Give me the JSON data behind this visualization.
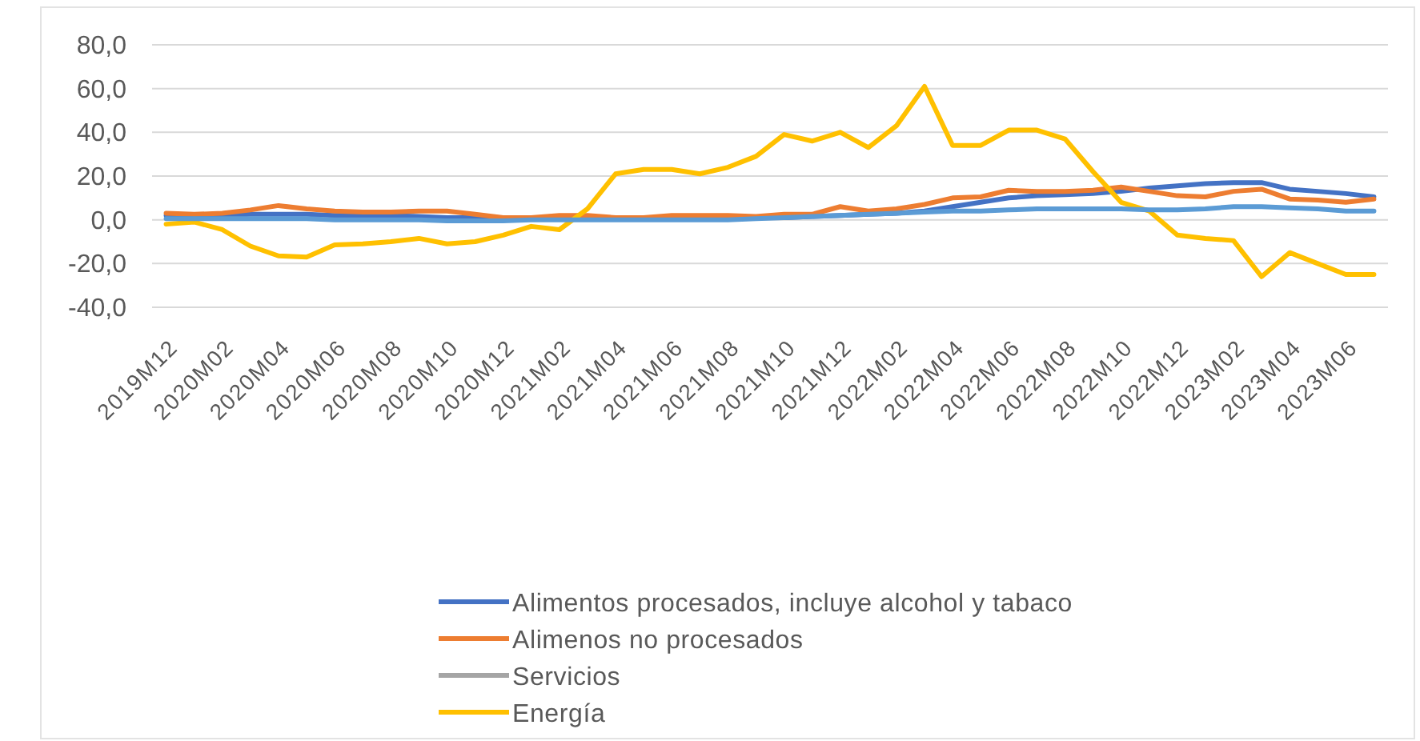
{
  "chart_data": {
    "type": "line",
    "categories": [
      "2019M12",
      null,
      "2020M02",
      null,
      "2020M04",
      null,
      "2020M06",
      null,
      "2020M08",
      null,
      "2020M10",
      null,
      "2020M12",
      null,
      "2021M02",
      null,
      "2021M04",
      null,
      "2021M06",
      null,
      "2021M08",
      null,
      "2021M10",
      null,
      "2021M12",
      null,
      "2022M02",
      null,
      "2022M04",
      null,
      "2022M06",
      null,
      "2022M08",
      null,
      "2022M10",
      null,
      "2022M12",
      null,
      "2023M02",
      null,
      "2023M04",
      null,
      "2023M06",
      null
    ],
    "series": [
      {
        "name": "Alimentos procesados, incluye alcohol y tabaco",
        "color": "#4472c4",
        "values": [
          2,
          2,
          2,
          2.5,
          2.5,
          2.5,
          2,
          2,
          2,
          1.5,
          1,
          1,
          1,
          1,
          1,
          0.5,
          0.5,
          0.5,
          0.5,
          0.5,
          0.5,
          1,
          1,
          1.5,
          2,
          2.5,
          3,
          4,
          6,
          8,
          10,
          11,
          11.5,
          12,
          13,
          14.5,
          15.5,
          16.5,
          17,
          17,
          14,
          13,
          12,
          10.5
        ]
      },
      {
        "name": "Alimenos no procesados",
        "color": "#ed7d31",
        "values": [
          3,
          2.5,
          3,
          4.5,
          6.5,
          5,
          4,
          3.5,
          3.5,
          4,
          4,
          2.5,
          1,
          1,
          2,
          2,
          1,
          1,
          2,
          2,
          2,
          1.5,
          2.5,
          2.5,
          6,
          4,
          5,
          7,
          10,
          10.5,
          13.5,
          13,
          13,
          13.5,
          15,
          13,
          11,
          10.5,
          13,
          14,
          9.5,
          9,
          8,
          9.5
        ]
      },
      {
        "name": "Servicios",
        "color": "#a5a5a5",
        "values": [
          null,
          null,
          null,
          null,
          null,
          null,
          null,
          null,
          null,
          null,
          null,
          null,
          null,
          null,
          null,
          null,
          null,
          null,
          null,
          null,
          null,
          null,
          null,
          null,
          null,
          null,
          null,
          null,
          null,
          null,
          null,
          null,
          null,
          null,
          null,
          null,
          null,
          null,
          null,
          null,
          null,
          null,
          null,
          null
        ]
      },
      {
        "name": "Energía",
        "color": "#ffc000",
        "values": [
          -2,
          -1,
          -4.5,
          -12,
          -16.5,
          -17,
          -11.5,
          -11,
          -10,
          -8.5,
          -11,
          -10,
          -7,
          -3,
          -4.5,
          5,
          21,
          23,
          23,
          21,
          24,
          29,
          39,
          36,
          40,
          33,
          43,
          61,
          34,
          34,
          41,
          41,
          37,
          22,
          8,
          4,
          -7,
          -8.5,
          -9.5,
          -26,
          -15,
          -20,
          -25,
          -25
        ]
      },
      {
        "color": "#5b9bd5",
        "values": [
          0.5,
          0.5,
          0.5,
          0.5,
          0.5,
          0.5,
          0,
          0,
          0,
          0,
          -0.5,
          -0.5,
          -0.5,
          0,
          0,
          0,
          0,
          0,
          0,
          0,
          0,
          0.5,
          1,
          1.5,
          2,
          2.5,
          3,
          3.5,
          4,
          4,
          4.5,
          5,
          5,
          5,
          5,
          4.5,
          4.5,
          5,
          6,
          6,
          5.5,
          5,
          4,
          4
        ]
      }
    ],
    "ylim": [
      -40,
      80
    ],
    "yticks": [
      {
        "value": -40,
        "label": "-40,0"
      },
      {
        "value": -20,
        "label": "-20,0"
      },
      {
        "value": 0,
        "label": "0,0"
      },
      {
        "value": 20,
        "label": "20,0"
      },
      {
        "value": 40,
        "label": "40,0"
      },
      {
        "value": 60,
        "label": "60,0"
      },
      {
        "value": 80,
        "label": "80,0"
      }
    ],
    "grid": "y",
    "legend": "bottom"
  }
}
